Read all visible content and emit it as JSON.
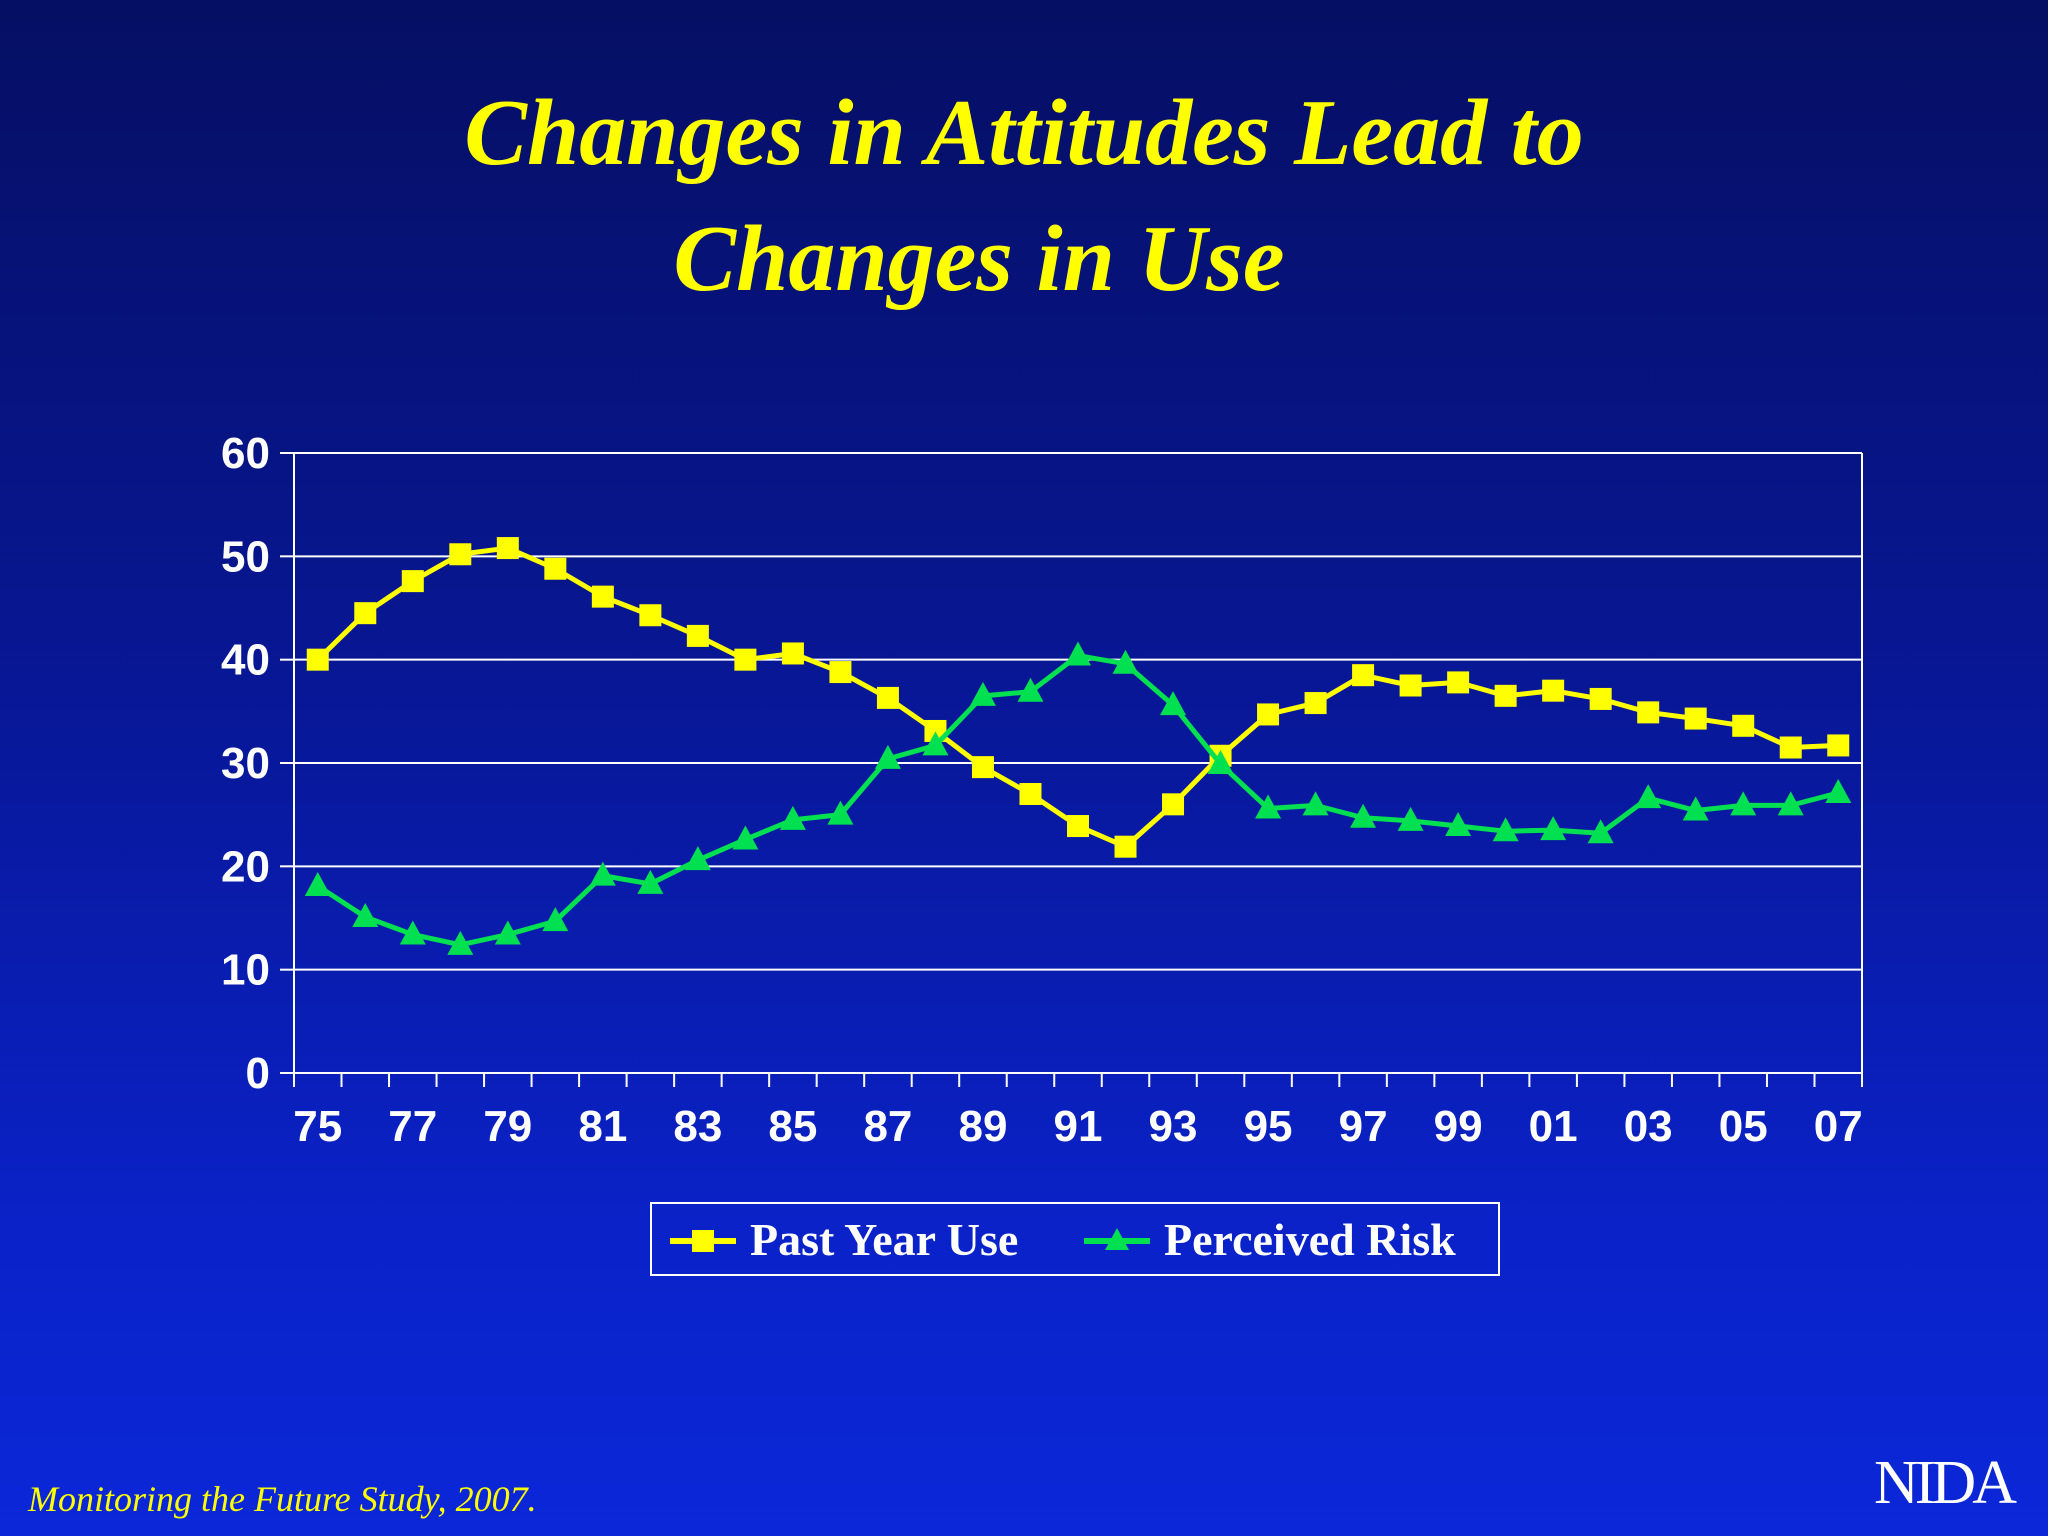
{
  "title": {
    "line1": "Changes in Attitudes Lead to",
    "line2": "Changes in Use"
  },
  "source": "Monitoring the Future Study, 2007.",
  "logo": "NIDA",
  "colors": {
    "past_year_use": "#ffff00",
    "perceived_risk": "#00e050",
    "grid": "#ffffff"
  },
  "chart_data": {
    "type": "line",
    "title": "Changes in Attitudes Lead to Changes in Use",
    "xlabel": "",
    "ylabel": "",
    "ylim": [
      0,
      60
    ],
    "yticks": [
      "0",
      "10",
      "20",
      "30",
      "40",
      "50",
      "60"
    ],
    "xtick_labels": [
      "75",
      "77",
      "79",
      "81",
      "83",
      "85",
      "87",
      "89",
      "91",
      "93",
      "95",
      "97",
      "99",
      "01",
      "03",
      "05",
      "07"
    ],
    "categories": [
      "75",
      "76",
      "77",
      "78",
      "79",
      "80",
      "81",
      "82",
      "83",
      "84",
      "85",
      "86",
      "87",
      "88",
      "89",
      "90",
      "91",
      "92",
      "93",
      "94",
      "95",
      "96",
      "97",
      "98",
      "99",
      "00",
      "01",
      "02",
      "03",
      "04",
      "05",
      "06",
      "07"
    ],
    "grid": true,
    "legend_position": "bottom",
    "series": [
      {
        "name": "Past Year Use",
        "marker": "square",
        "values": [
          40.0,
          44.5,
          47.6,
          50.2,
          50.8,
          48.8,
          46.1,
          44.3,
          42.3,
          40.0,
          40.6,
          38.8,
          36.3,
          33.1,
          29.6,
          27.0,
          23.9,
          21.9,
          26.0,
          30.7,
          34.7,
          35.8,
          38.5,
          37.5,
          37.8,
          36.5,
          37.0,
          36.2,
          34.9,
          34.3,
          33.6,
          31.5,
          31.7
        ]
      },
      {
        "name": "Perceived Risk",
        "marker": "triangle",
        "values": [
          18.1,
          15.1,
          13.4,
          12.4,
          13.4,
          14.7,
          19.1,
          18.3,
          20.6,
          22.6,
          24.5,
          25.0,
          30.4,
          31.7,
          36.5,
          36.9,
          40.4,
          39.6,
          35.6,
          29.9,
          25.6,
          25.9,
          24.7,
          24.4,
          23.9,
          23.4,
          23.5,
          23.2,
          26.6,
          25.4,
          25.9,
          25.9,
          27.1
        ]
      }
    ]
  }
}
